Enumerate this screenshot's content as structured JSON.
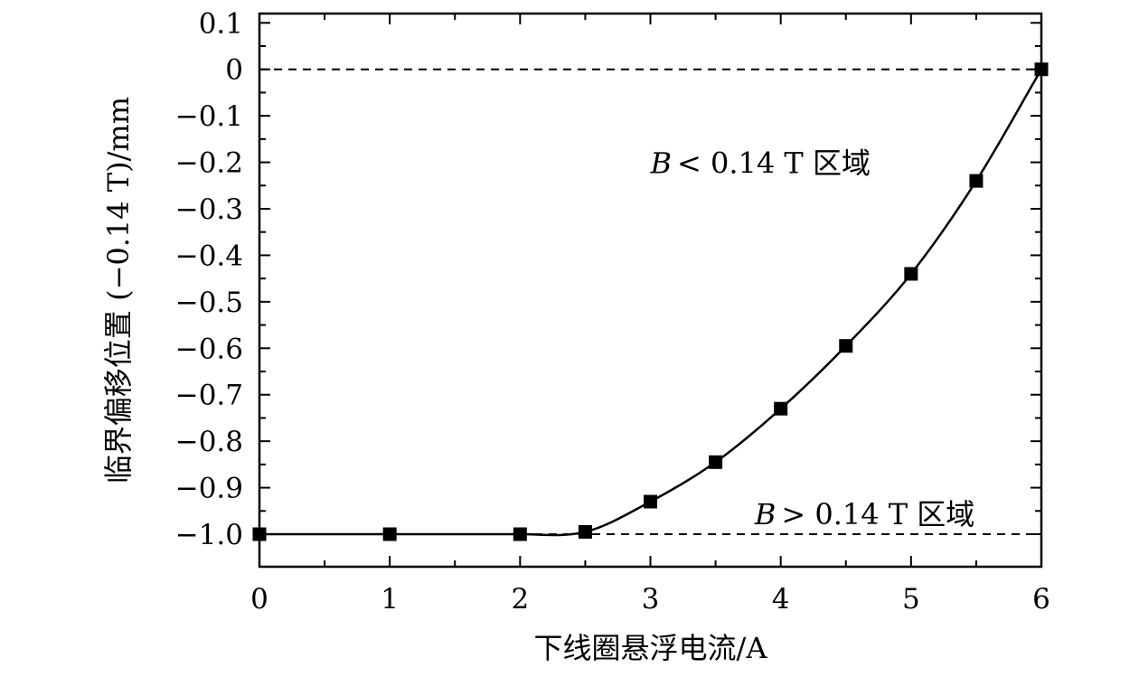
{
  "chart_data": {
    "type": "line",
    "title": "",
    "xlabel": "下线圈悬浮电流/A",
    "ylabel": "临界偏移位置 (−0.14 T)/mm",
    "xlim": [
      0,
      6
    ],
    "ylim": [
      -1.07,
      0.12
    ],
    "x_ticks": [
      {
        "value": 0,
        "label": "0"
      },
      {
        "value": 1,
        "label": "1"
      },
      {
        "value": 2,
        "label": "2"
      },
      {
        "value": 3,
        "label": "3"
      },
      {
        "value": 4,
        "label": "4"
      },
      {
        "value": 5,
        "label": "5"
      },
      {
        "value": 6,
        "label": "6"
      }
    ],
    "y_ticks": [
      {
        "value": 0.1,
        "label": "0.1"
      },
      {
        "value": 0,
        "label": "0"
      },
      {
        "value": -0.1,
        "label": "−0.1"
      },
      {
        "value": -0.2,
        "label": "−0.2"
      },
      {
        "value": -0.3,
        "label": "−0.3"
      },
      {
        "value": -0.4,
        "label": "−0.4"
      },
      {
        "value": -0.5,
        "label": "−0.5"
      },
      {
        "value": -0.6,
        "label": "−0.6"
      },
      {
        "value": -0.7,
        "label": "−0.7"
      },
      {
        "value": -0.8,
        "label": "−0.8"
      },
      {
        "value": -0.9,
        "label": "−0.9"
      },
      {
        "value": -1.0,
        "label": "−1.0"
      }
    ],
    "series": [
      {
        "marker": "square",
        "color": "#000000",
        "x": [
          0,
          1,
          2,
          2.5,
          3,
          3.5,
          4,
          4.5,
          5,
          5.5,
          6
        ],
        "y": [
          -1.0,
          -1.0,
          -1.0,
          -0.995,
          -0.93,
          -0.845,
          -0.73,
          -0.595,
          -0.44,
          -0.24,
          0.0
        ]
      }
    ],
    "reference_lines": [
      {
        "y": 0.0,
        "style": "dashed"
      },
      {
        "y": -1.0,
        "style": "dashed"
      }
    ],
    "annotations": [
      {
        "var": "B",
        "text": "< 0.14 T 区域",
        "x": 3.0,
        "y": -0.2
      },
      {
        "var": "B",
        "text": "> 0.14 T 区域",
        "x": 3.8,
        "y": -0.955
      }
    ],
    "grid": false,
    "legend": "none"
  }
}
